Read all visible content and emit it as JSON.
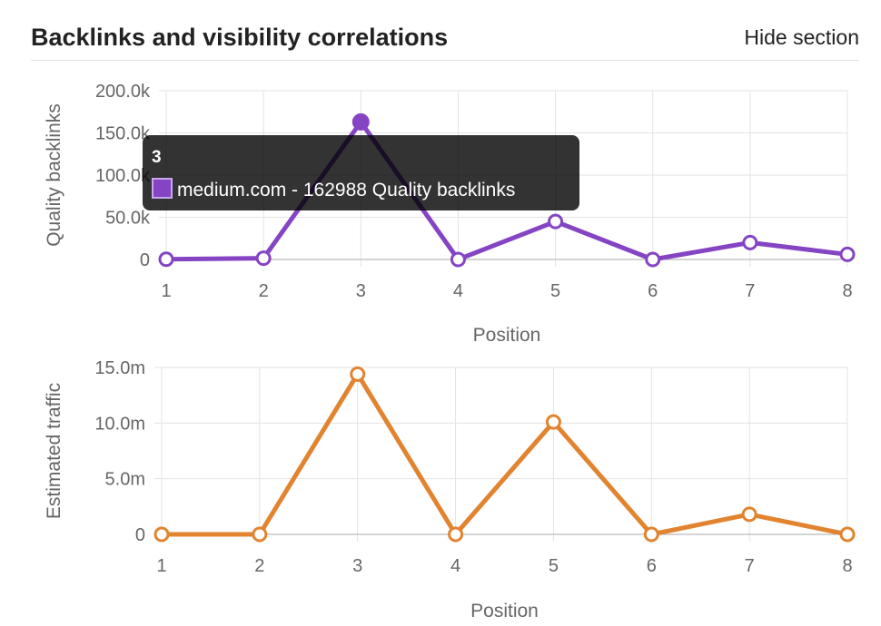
{
  "header": {
    "title": "Backlinks and visibility correlations",
    "hide_label": "Hide section"
  },
  "colors": {
    "purple": "#8444c4",
    "orange": "#e2832f"
  },
  "chart_data": [
    {
      "type": "line",
      "xlabel": "Position",
      "ylabel": "Quality backlinks",
      "x": [
        1,
        2,
        3,
        4,
        5,
        6,
        7,
        8
      ],
      "series": [
        {
          "name": "Quality backlinks",
          "values": [
            300,
            1500,
            162988,
            0,
            45000,
            0,
            20000,
            6000
          ]
        }
      ],
      "ylim": [
        0,
        200000
      ],
      "yticks": [
        "0",
        "50.0k",
        "100.0k",
        "150.0k",
        "200.0k"
      ],
      "grid": true,
      "tooltip": {
        "title": "3",
        "label": "medium.com - 162988 Quality backlinks"
      }
    },
    {
      "type": "line",
      "xlabel": "Position",
      "ylabel": "Estimated traffic",
      "x": [
        1,
        2,
        3,
        4,
        5,
        6,
        7,
        8
      ],
      "series": [
        {
          "name": "Estimated traffic",
          "values": [
            0,
            0,
            14400000,
            0,
            10100000,
            0,
            1800000,
            0
          ]
        }
      ],
      "ylim": [
        0,
        15000000
      ],
      "yticks": [
        "0",
        "5.0m",
        "10.0m",
        "15.0m"
      ],
      "grid": true
    }
  ]
}
